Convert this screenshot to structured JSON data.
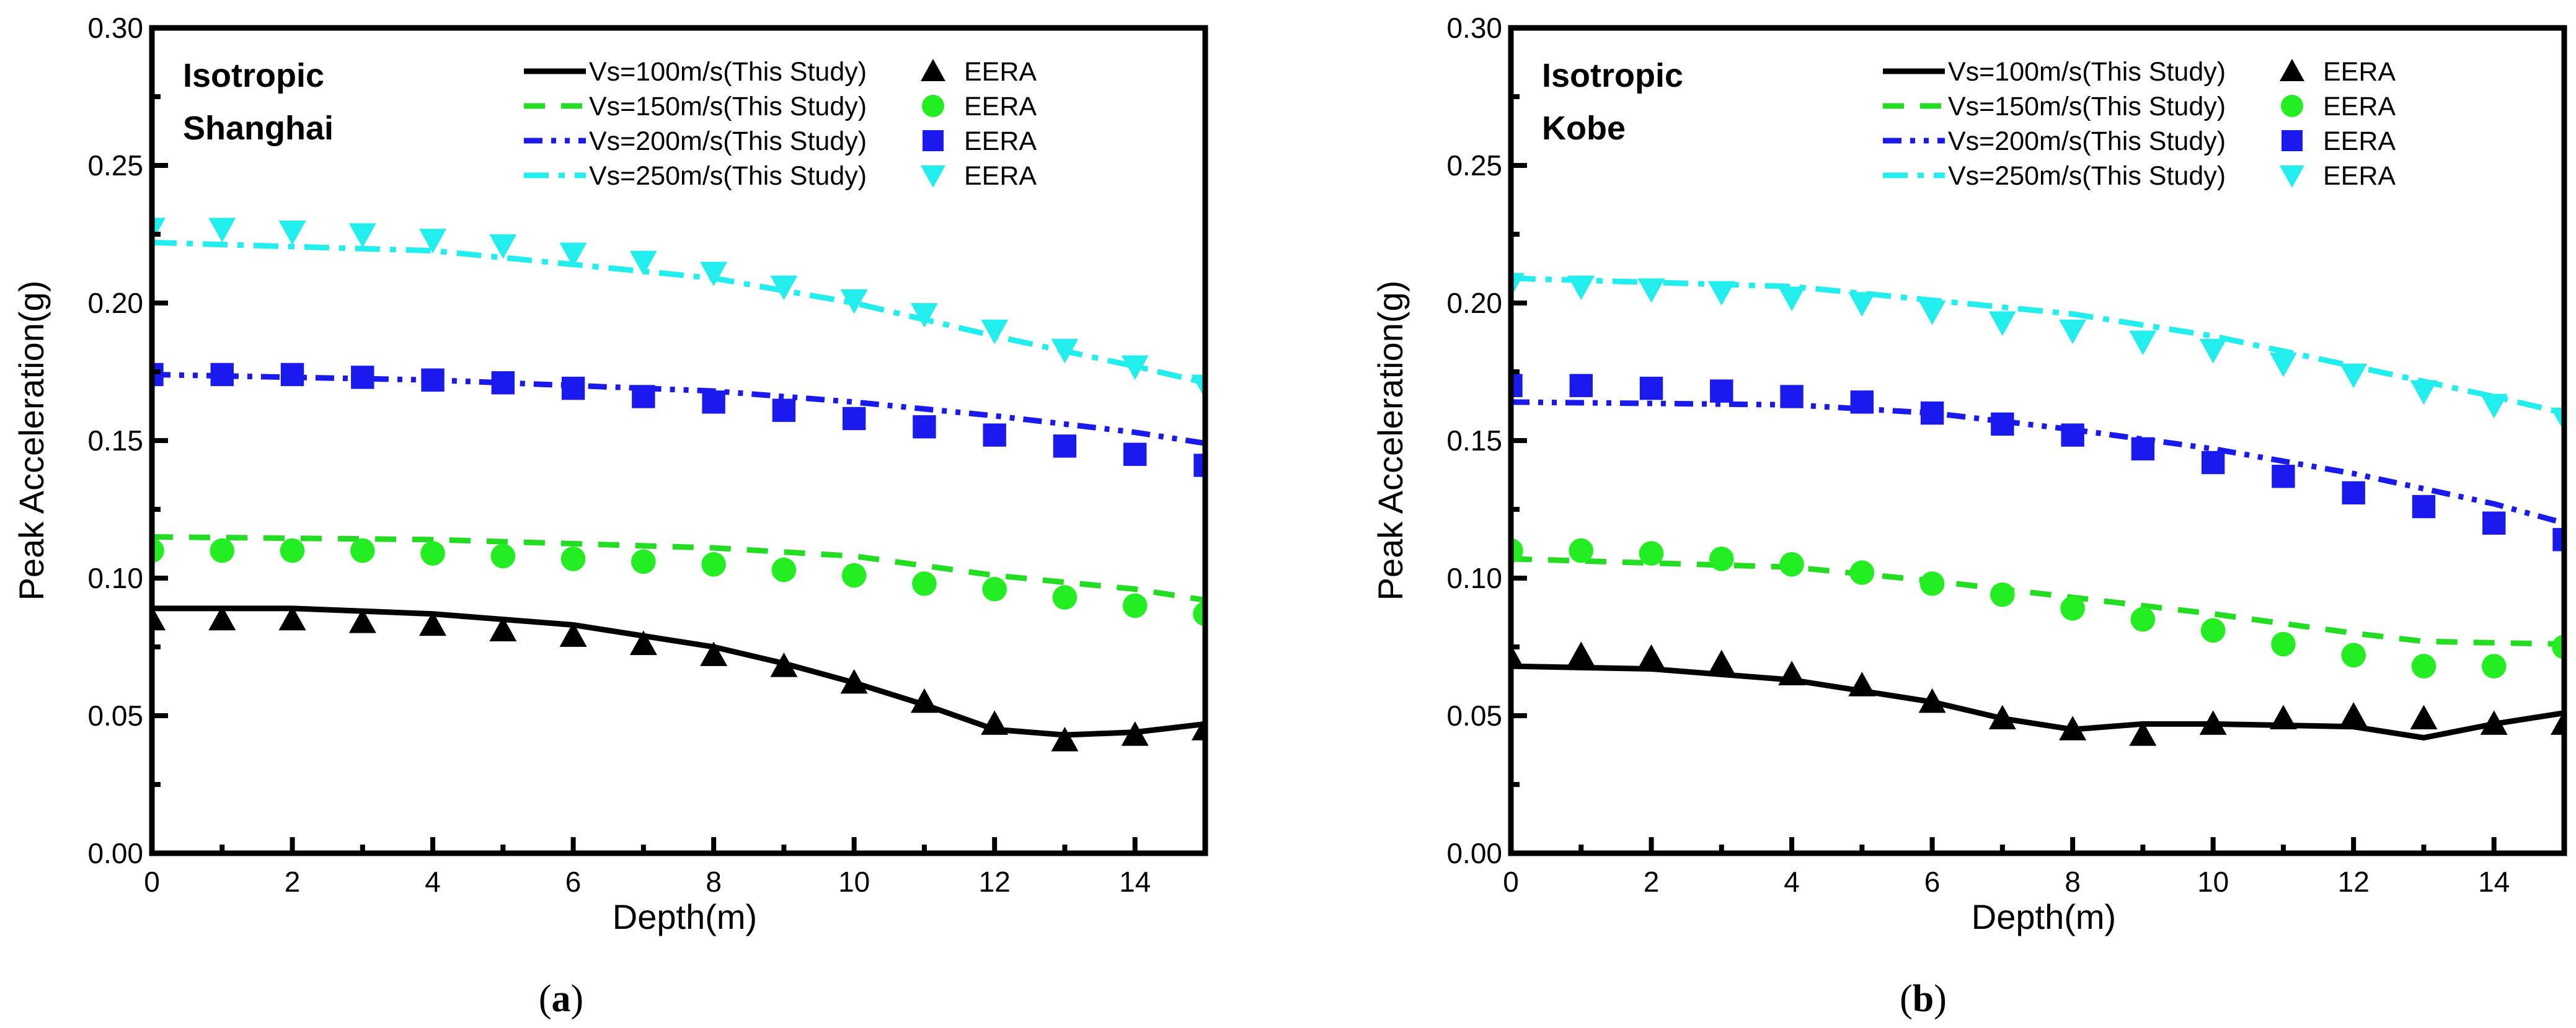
{
  "chart_data": [
    {
      "type": "line",
      "panel_caption": "(a)",
      "caption_letter": "a",
      "annotation": [
        "Isotropic",
        "Shanghai"
      ],
      "xlabel": "Depth(m)",
      "ylabel": "Peak Acceleration(g)",
      "xlim": [
        0,
        15
      ],
      "ylim": [
        0,
        0.3
      ],
      "xticks": [
        "0",
        "2",
        "4",
        "6",
        "8",
        "10",
        "12",
        "14"
      ],
      "yticks": [
        "0.00",
        "0.05",
        "0.10",
        "0.15",
        "0.20",
        "0.25",
        "0.30"
      ],
      "legend_position": "top-right",
      "series": [
        {
          "name": "Vs=100m/s(This Study)",
          "kind": "line",
          "style": "solid",
          "color": "#000000",
          "x": [
            0,
            2,
            4,
            6,
            8,
            9,
            10,
            11,
            12,
            13,
            14,
            15
          ],
          "y": [
            0.089,
            0.089,
            0.087,
            0.083,
            0.075,
            0.069,
            0.062,
            0.054,
            0.045,
            0.043,
            0.044,
            0.047
          ]
        },
        {
          "name": "EERA",
          "kind": "marker",
          "marker": "triangle",
          "color": "#000000",
          "x": [
            0,
            1,
            2,
            3,
            4,
            5,
            6,
            7,
            8,
            9,
            10,
            11,
            12,
            13,
            14,
            15
          ],
          "y": [
            0.085,
            0.085,
            0.085,
            0.084,
            0.083,
            0.081,
            0.079,
            0.076,
            0.072,
            0.068,
            0.062,
            0.055,
            0.047,
            0.041,
            0.043,
            0.045
          ]
        },
        {
          "name": "Vs=150m/s(This Study)",
          "kind": "line",
          "style": "dash",
          "color": "#22dd22",
          "x": [
            0,
            4,
            8,
            10,
            12,
            14,
            15
          ],
          "y": [
            0.115,
            0.114,
            0.111,
            0.108,
            0.101,
            0.096,
            0.092
          ]
        },
        {
          "name": "EERA",
          "kind": "marker",
          "marker": "circle",
          "color": "#22ee22",
          "x": [
            0,
            1,
            2,
            3,
            4,
            5,
            6,
            7,
            8,
            9,
            10,
            11,
            12,
            13,
            14,
            15
          ],
          "y": [
            0.11,
            0.11,
            0.11,
            0.11,
            0.109,
            0.108,
            0.107,
            0.106,
            0.105,
            0.103,
            0.101,
            0.098,
            0.096,
            0.093,
            0.09,
            0.087
          ]
        },
        {
          "name": "Vs=200m/s(This Study)",
          "kind": "line",
          "style": "dashdotdot",
          "color": "#1a1aee",
          "x": [
            0,
            4,
            8,
            10,
            12,
            14,
            15
          ],
          "y": [
            0.174,
            0.172,
            0.168,
            0.164,
            0.159,
            0.153,
            0.149
          ]
        },
        {
          "name": "EERA",
          "kind": "marker",
          "marker": "square",
          "color": "#1a1aee",
          "x": [
            0,
            1,
            2,
            3,
            4,
            5,
            6,
            7,
            8,
            9,
            10,
            11,
            12,
            13,
            14,
            15
          ],
          "y": [
            0.174,
            0.174,
            0.174,
            0.173,
            0.172,
            0.171,
            0.169,
            0.166,
            0.164,
            0.161,
            0.158,
            0.155,
            0.152,
            0.148,
            0.145,
            0.141
          ]
        },
        {
          "name": "Vs=250m/s(This Study)",
          "kind": "line",
          "style": "dashdot",
          "color": "#22eeee",
          "x": [
            0,
            4,
            8,
            10,
            12,
            14,
            15
          ],
          "y": [
            0.222,
            0.219,
            0.209,
            0.2,
            0.188,
            0.177,
            0.171
          ]
        },
        {
          "name": "EERA",
          "kind": "marker",
          "marker": "triangle-down",
          "color": "#22eeee",
          "x": [
            0,
            1,
            2,
            3,
            4,
            5,
            6,
            7,
            8,
            9,
            10,
            11,
            12,
            13,
            14,
            15
          ],
          "y": [
            0.227,
            0.227,
            0.226,
            0.225,
            0.223,
            0.221,
            0.218,
            0.215,
            0.211,
            0.206,
            0.201,
            0.196,
            0.19,
            0.183,
            0.177,
            0.17
          ]
        }
      ]
    },
    {
      "type": "line",
      "panel_caption": "(b)",
      "caption_letter": "b",
      "annotation": [
        "Isotropic",
        "Kobe"
      ],
      "xlabel": "Depth(m)",
      "ylabel": "Peak Acceleration(g)",
      "xlim": [
        0,
        15
      ],
      "ylim": [
        0,
        0.3
      ],
      "xticks": [
        "0",
        "2",
        "4",
        "6",
        "8",
        "10",
        "12",
        "14"
      ],
      "yticks": [
        "0.00",
        "0.05",
        "0.10",
        "0.15",
        "0.20",
        "0.25",
        "0.30"
      ],
      "legend_position": "top-right",
      "series": [
        {
          "name": "Vs=100m/s(This Study)",
          "kind": "line",
          "style": "solid",
          "color": "#000000",
          "x": [
            0,
            2,
            4,
            6,
            7,
            8,
            9,
            10,
            12,
            13,
            14,
            15
          ],
          "y": [
            0.068,
            0.067,
            0.063,
            0.055,
            0.049,
            0.045,
            0.047,
            0.047,
            0.046,
            0.042,
            0.047,
            0.051
          ]
        },
        {
          "name": "EERA",
          "kind": "marker",
          "marker": "triangle",
          "color": "#000000",
          "x": [
            0,
            1,
            2,
            3,
            4,
            5,
            6,
            7,
            8,
            9,
            10,
            11,
            12,
            13,
            14,
            15
          ],
          "y": [
            0.071,
            0.072,
            0.071,
            0.069,
            0.065,
            0.061,
            0.055,
            0.049,
            0.045,
            0.043,
            0.047,
            0.049,
            0.05,
            0.049,
            0.047,
            0.047
          ]
        },
        {
          "name": "Vs=150m/s(This Study)",
          "kind": "line",
          "style": "dash",
          "color": "#22dd22",
          "x": [
            0,
            4,
            6,
            8,
            10,
            12,
            13,
            15
          ],
          "y": [
            0.107,
            0.104,
            0.099,
            0.093,
            0.087,
            0.08,
            0.077,
            0.076
          ]
        },
        {
          "name": "EERA",
          "kind": "marker",
          "marker": "circle",
          "color": "#22ee22",
          "x": [
            0,
            1,
            2,
            3,
            4,
            5,
            6,
            7,
            8,
            9,
            10,
            11,
            12,
            13,
            14,
            15
          ],
          "y": [
            0.11,
            0.11,
            0.109,
            0.107,
            0.105,
            0.102,
            0.098,
            0.094,
            0.089,
            0.085,
            0.081,
            0.076,
            0.072,
            0.068,
            0.068,
            0.075
          ]
        },
        {
          "name": "Vs=200m/s(This Study)",
          "kind": "line",
          "style": "dashdotdot",
          "color": "#1a1aee",
          "x": [
            0,
            4,
            6,
            8,
            10,
            12,
            14,
            15
          ],
          "y": [
            0.164,
            0.163,
            0.16,
            0.154,
            0.147,
            0.138,
            0.127,
            0.12
          ]
        },
        {
          "name": "EERA",
          "kind": "marker",
          "marker": "square",
          "color": "#1a1aee",
          "x": [
            0,
            1,
            2,
            3,
            4,
            5,
            6,
            7,
            8,
            9,
            10,
            11,
            12,
            13,
            14,
            15
          ],
          "y": [
            0.17,
            0.17,
            0.169,
            0.168,
            0.166,
            0.164,
            0.16,
            0.156,
            0.152,
            0.147,
            0.142,
            0.137,
            0.131,
            0.126,
            0.12,
            0.114
          ]
        },
        {
          "name": "Vs=250m/s(This Study)",
          "kind": "line",
          "style": "dashdot",
          "color": "#22eeee",
          "x": [
            0,
            4,
            6,
            8,
            10,
            12,
            14,
            15
          ],
          "y": [
            0.209,
            0.206,
            0.201,
            0.196,
            0.188,
            0.177,
            0.166,
            0.16
          ]
        },
        {
          "name": "EERA",
          "kind": "marker",
          "marker": "triangle-down",
          "color": "#22eeee",
          "x": [
            0,
            1,
            2,
            3,
            4,
            5,
            6,
            7,
            8,
            9,
            10,
            11,
            12,
            13,
            14,
            15
          ],
          "y": [
            0.207,
            0.206,
            0.205,
            0.204,
            0.202,
            0.2,
            0.197,
            0.193,
            0.19,
            0.186,
            0.183,
            0.178,
            0.174,
            0.168,
            0.163,
            0.158
          ]
        }
      ]
    }
  ]
}
